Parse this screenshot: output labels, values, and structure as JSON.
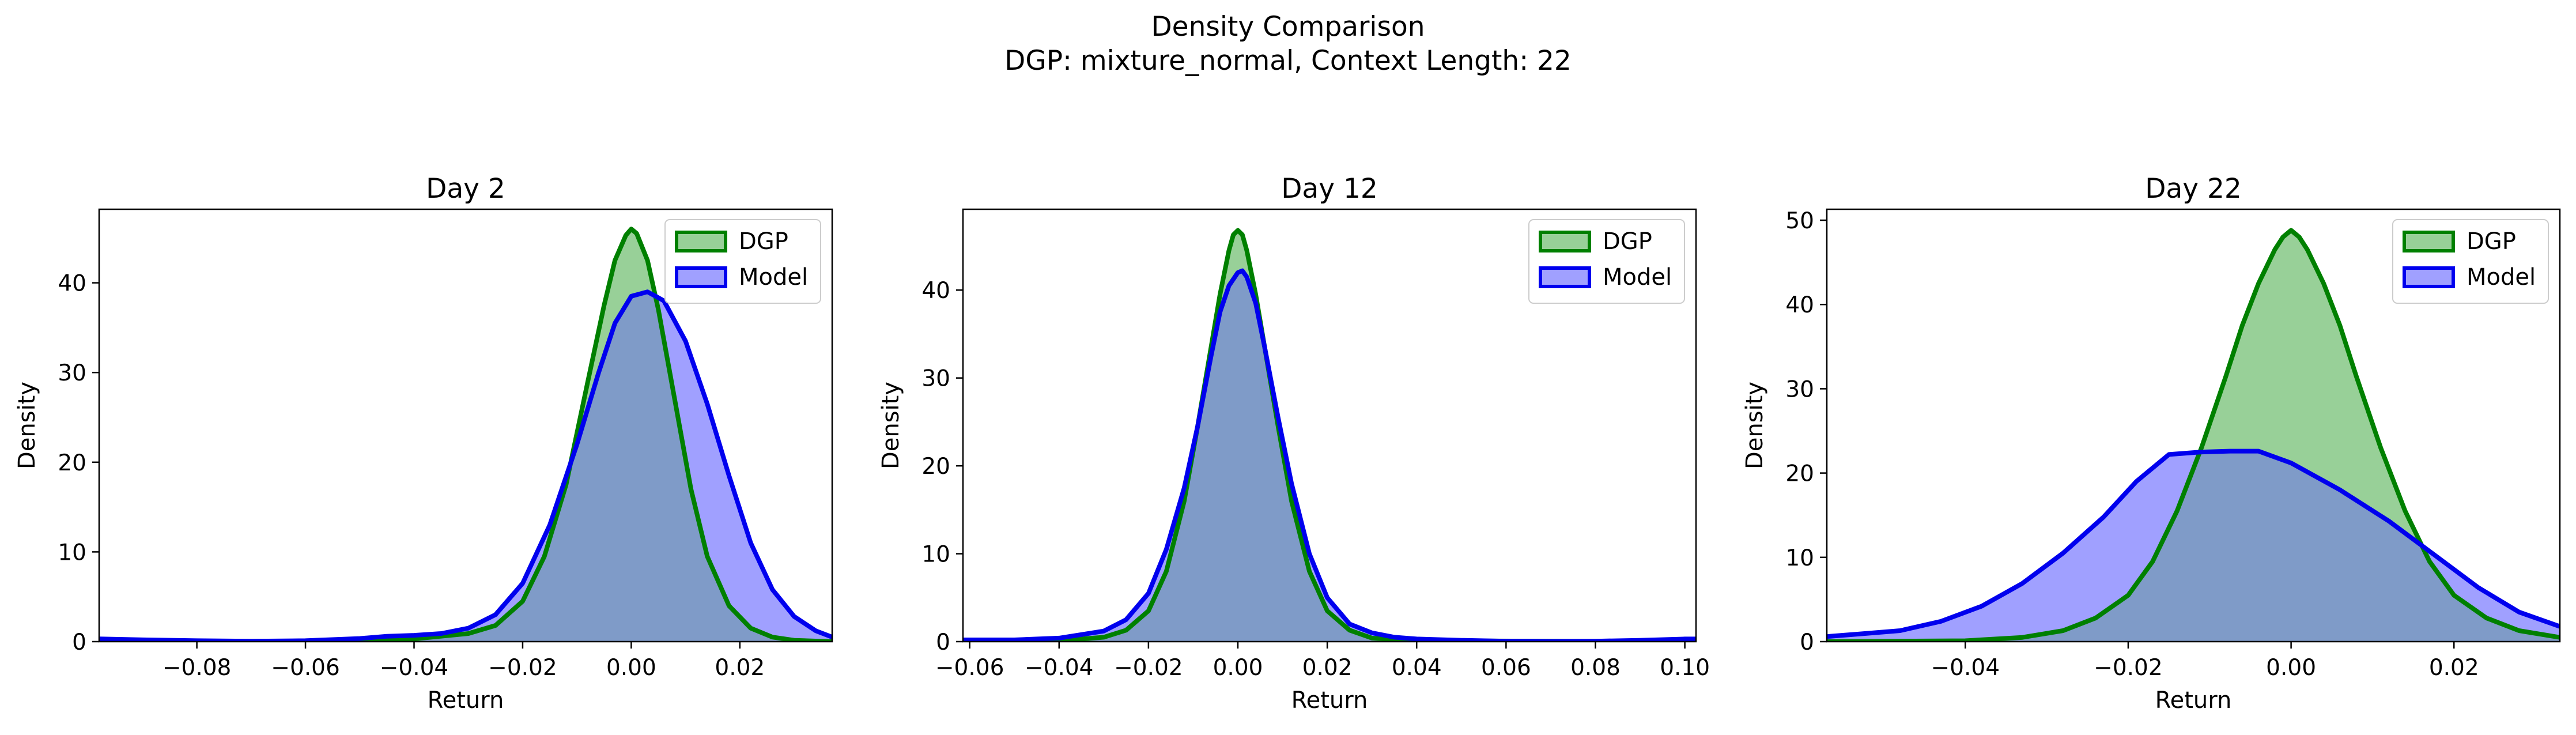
{
  "figure": {
    "title_line1": "Density Comparison",
    "title_line2": "DGP: mixture_normal, Context Length: 22"
  },
  "colors": {
    "dgp_line": "#008000",
    "dgp_fill": "#98d098",
    "model_line": "#0000ee",
    "model_fill": "#a0a0ff",
    "overlap_fill": "#7f9bc8"
  },
  "chart_data": [
    {
      "type": "area",
      "title": "Day 2",
      "xlabel": "Return",
      "ylabel": "Density",
      "xlim": [
        -0.098,
        0.037
      ],
      "ylim": [
        0,
        48.2
      ],
      "xticks": [
        -0.08,
        -0.06,
        -0.04,
        -0.02,
        0.0,
        0.02
      ],
      "xtick_labels": [
        "−0.08",
        "−0.06",
        "−0.04",
        "−0.02",
        "0.00",
        "0.02"
      ],
      "yticks": [
        0,
        10,
        20,
        30,
        40
      ],
      "ytick_labels": [
        "0",
        "10",
        "20",
        "30",
        "40"
      ],
      "legend": {
        "position": "upper-right",
        "entries": [
          "DGP",
          "Model"
        ]
      },
      "series": [
        {
          "name": "DGP",
          "x": [
            -0.098,
            -0.06,
            -0.04,
            -0.03,
            -0.025,
            -0.02,
            -0.016,
            -0.012,
            -0.008,
            -0.005,
            -0.003,
            -0.001,
            0.0,
            0.001,
            0.003,
            0.005,
            0.008,
            0.011,
            0.014,
            0.018,
            0.022,
            0.026,
            0.03,
            0.037
          ],
          "y": [
            0.0,
            0.05,
            0.3,
            0.9,
            1.8,
            4.5,
            9.5,
            17.5,
            29.0,
            37.5,
            42.5,
            45.3,
            46.0,
            45.5,
            42.5,
            37.0,
            27.0,
            17.0,
            9.5,
            4.0,
            1.5,
            0.5,
            0.15,
            0.0
          ]
        },
        {
          "name": "Model",
          "x": [
            -0.098,
            -0.09,
            -0.08,
            -0.07,
            -0.06,
            -0.05,
            -0.045,
            -0.04,
            -0.035,
            -0.03,
            -0.025,
            -0.02,
            -0.015,
            -0.01,
            -0.006,
            -0.003,
            0.0,
            0.003,
            0.006,
            0.01,
            0.014,
            0.018,
            0.022,
            0.026,
            0.03,
            0.034,
            0.037
          ],
          "y": [
            0.3,
            0.2,
            0.1,
            0.05,
            0.1,
            0.35,
            0.6,
            0.7,
            0.9,
            1.5,
            3.0,
            6.5,
            13.0,
            22.0,
            30.0,
            35.5,
            38.5,
            39.0,
            38.0,
            33.5,
            26.5,
            18.5,
            11.0,
            5.8,
            2.8,
            1.2,
            0.5
          ]
        }
      ]
    },
    {
      "type": "area",
      "title": "Day 12",
      "xlabel": "Return",
      "ylabel": "Density",
      "xlim": [
        -0.0615,
        0.1025
      ],
      "ylim": [
        0,
        49.2
      ],
      "xticks": [
        -0.06,
        -0.04,
        -0.02,
        0.0,
        0.02,
        0.04,
        0.06,
        0.08,
        0.1
      ],
      "xtick_labels": [
        "−0.06",
        "−0.04",
        "−0.02",
        "0.00",
        "0.02",
        "0.04",
        "0.06",
        "0.08",
        "0.10"
      ],
      "yticks": [
        0,
        10,
        20,
        30,
        40
      ],
      "ytick_labels": [
        "0",
        "10",
        "20",
        "30",
        "40"
      ],
      "legend": {
        "position": "upper-right",
        "entries": [
          "DGP",
          "Model"
        ]
      },
      "series": [
        {
          "name": "DGP",
          "x": [
            -0.0615,
            -0.04,
            -0.03,
            -0.025,
            -0.02,
            -0.016,
            -0.012,
            -0.009,
            -0.006,
            -0.004,
            -0.002,
            -0.001,
            0.0,
            0.001,
            0.002,
            0.004,
            0.006,
            0.009,
            0.012,
            0.016,
            0.02,
            0.025,
            0.03,
            0.04,
            0.1025
          ],
          "y": [
            0.0,
            0.1,
            0.5,
            1.3,
            3.5,
            8.0,
            16.0,
            24.5,
            33.5,
            39.5,
            44.5,
            46.3,
            46.8,
            46.3,
            44.5,
            39.5,
            33.5,
            24.5,
            16.0,
            8.0,
            3.5,
            1.3,
            0.4,
            0.1,
            0.0
          ]
        },
        {
          "name": "Model",
          "x": [
            -0.0615,
            -0.05,
            -0.04,
            -0.03,
            -0.025,
            -0.02,
            -0.016,
            -0.012,
            -0.009,
            -0.006,
            -0.004,
            -0.002,
            0.0,
            0.001,
            0.002,
            0.004,
            0.006,
            0.009,
            0.012,
            0.016,
            0.02,
            0.025,
            0.03,
            0.035,
            0.04,
            0.05,
            0.06,
            0.07,
            0.08,
            0.09,
            0.1,
            0.1025
          ],
          "y": [
            0.2,
            0.2,
            0.4,
            1.2,
            2.5,
            5.5,
            10.5,
            17.5,
            24.5,
            32.5,
            37.5,
            40.5,
            42.0,
            42.2,
            41.5,
            38.5,
            33.5,
            25.5,
            18.0,
            10.0,
            5.0,
            2.0,
            1.0,
            0.5,
            0.3,
            0.15,
            0.05,
            0.02,
            0.05,
            0.15,
            0.3,
            0.3
          ]
        }
      ]
    },
    {
      "type": "area",
      "title": "Day 22",
      "xlabel": "Return",
      "ylabel": "Density",
      "xlim": [
        -0.057,
        0.033
      ],
      "ylim": [
        0,
        51.3
      ],
      "xticks": [
        -0.04,
        -0.02,
        0.0,
        0.02
      ],
      "xtick_labels": [
        "−0.04",
        "−0.02",
        "0.00",
        "0.02"
      ],
      "yticks": [
        0,
        10,
        20,
        30,
        40,
        50
      ],
      "ytick_labels": [
        "0",
        "10",
        "20",
        "30",
        "40",
        "50"
      ],
      "legend": {
        "position": "upper-right",
        "entries": [
          "DGP",
          "Model"
        ]
      },
      "series": [
        {
          "name": "DGP",
          "x": [
            -0.057,
            -0.04,
            -0.033,
            -0.028,
            -0.024,
            -0.02,
            -0.017,
            -0.014,
            -0.011,
            -0.008,
            -0.006,
            -0.004,
            -0.002,
            -0.001,
            0.0,
            0.001,
            0.002,
            0.004,
            0.006,
            0.008,
            0.011,
            0.014,
            0.017,
            0.02,
            0.024,
            0.028,
            0.033
          ],
          "y": [
            0.0,
            0.1,
            0.5,
            1.3,
            2.8,
            5.5,
            9.5,
            15.5,
            23.0,
            31.5,
            37.5,
            42.5,
            46.5,
            48.0,
            48.8,
            48.0,
            46.5,
            42.5,
            37.5,
            31.5,
            23.0,
            15.5,
            9.5,
            5.5,
            2.8,
            1.3,
            0.5
          ]
        },
        {
          "name": "Model",
          "x": [
            -0.057,
            -0.053,
            -0.048,
            -0.043,
            -0.038,
            -0.033,
            -0.028,
            -0.023,
            -0.019,
            -0.015,
            -0.011,
            -0.0075,
            -0.004,
            0.0,
            0.006,
            0.012,
            0.018,
            0.023,
            0.028,
            0.033
          ],
          "y": [
            0.6,
            0.9,
            1.3,
            2.4,
            4.2,
            6.9,
            10.5,
            14.8,
            19.0,
            22.2,
            22.5,
            22.6,
            22.6,
            21.2,
            18.0,
            14.3,
            10.0,
            6.4,
            3.5,
            1.8
          ]
        }
      ]
    }
  ]
}
